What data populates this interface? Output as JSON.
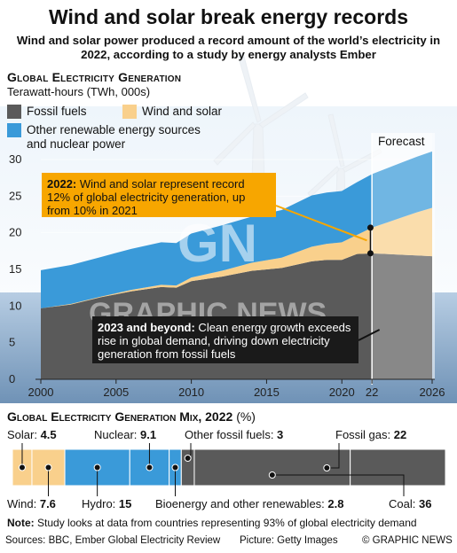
{
  "headline": "Wind and solar break energy records",
  "subhead": "Wind and solar power produced a record amount of the world’s electricity in 2022, according to a study by energy analysts Ember",
  "section_title": "Global Electricity Generation",
  "unit_label": "Terawatt-hours (TWh, 000s)",
  "legend": {
    "fossil": "Fossil fuels",
    "wind_solar": "Wind and solar",
    "other": "Other renewable energy sources and nuclear power"
  },
  "forecast_label": "Forecast",
  "callout_2022": {
    "lead": "2022:",
    "text": " Wind and solar represent record 12% of global electricity generation, up from 10% in 2021"
  },
  "callout_2023": {
    "lead": "2023 and beyond:",
    "text": " Clean energy growth exceeds rise in global demand, driving down electricity generation from fossil fuels"
  },
  "watermark": {
    "logo": "GN",
    "name": "GRAPHIC NEWS"
  },
  "colors": {
    "fossil": "#5a5a5a",
    "wind_solar": "#f9d08c",
    "other": "#3a9ad9",
    "callout": "#f7a600",
    "dark": "#1a1a1a"
  },
  "chart_data": {
    "type": "area",
    "title": "Global Electricity Generation",
    "ylabel": "Terawatt-hours (TWh, 000s)",
    "ylim": [
      0,
      30
    ],
    "yticks": [
      0,
      5,
      10,
      15,
      20,
      25,
      30
    ],
    "xticks": [
      "2000",
      "2005",
      "2010",
      "2015",
      "2020",
      "22",
      "2026"
    ],
    "xlim": [
      2000,
      2026
    ],
    "forecast_start": 2022,
    "x": [
      2000,
      2002,
      2004,
      2006,
      2008,
      2009,
      2010,
      2012,
      2014,
      2016,
      2018,
      2019,
      2020,
      2021,
      2022,
      2023,
      2024,
      2025,
      2026
    ],
    "series": [
      {
        "name": "Fossil fuels",
        "values": [
          9.7,
          10.2,
          11.2,
          12.0,
          12.6,
          12.5,
          13.4,
          14.0,
          14.8,
          15.2,
          16.1,
          16.3,
          16.3,
          17.1,
          17.2,
          17.1,
          17.0,
          16.9,
          16.8
        ]
      },
      {
        "name": "Wind and solar",
        "values": [
          0.0,
          0.1,
          0.1,
          0.2,
          0.3,
          0.3,
          0.5,
          0.8,
          1.1,
          1.4,
          2.0,
          2.2,
          2.4,
          2.6,
          3.5,
          4.3,
          5.1,
          5.9,
          6.6
        ]
      },
      {
        "name": "Other renewable energy sources and nuclear power",
        "values": [
          5.2,
          5.3,
          5.4,
          5.6,
          5.8,
          5.8,
          6.0,
          6.2,
          6.3,
          6.5,
          7.0,
          7.0,
          7.0,
          7.2,
          7.3,
          7.4,
          7.5,
          7.6,
          7.7
        ]
      }
    ],
    "annotations": [
      {
        "x": 2022,
        "text": "2022: Wind and solar represent record 12% of global electricity generation, up from 10% in 2021"
      },
      {
        "x": 2023,
        "text": "2023 and beyond: Clean energy growth exceeds rise in global demand, driving down electricity generation from fossil fuels"
      }
    ]
  },
  "mix": {
    "title": "Global Electricity Generation Mix, 2022",
    "unit": "(%)",
    "segments": [
      {
        "name": "Solar",
        "value": 4.5,
        "color": "#f9d08c"
      },
      {
        "name": "Wind",
        "value": 7.6,
        "color": "#f9d08c"
      },
      {
        "name": "Hydro",
        "value": 15,
        "color": "#3a9ad9"
      },
      {
        "name": "Nuclear",
        "value": 9.1,
        "color": "#3a9ad9"
      },
      {
        "name": "Bioenergy and other renewables",
        "value": 2.8,
        "color": "#3a9ad9"
      },
      {
        "name": "Other fossil fuels",
        "value": 3,
        "color": "#5a5a5a"
      },
      {
        "name": "Coal",
        "value": 36,
        "color": "#5a5a5a"
      },
      {
        "name": "Fossil gas",
        "value": 22,
        "color": "#5a5a5a"
      }
    ],
    "labels": {
      "solar": {
        "name": "Solar: ",
        "value": "4.5"
      },
      "nuclear": {
        "name": "Nuclear: ",
        "value": "9.1"
      },
      "other_fossil": {
        "name": "Other fossil fuels: ",
        "value": "3"
      },
      "fossil_gas": {
        "name": "Fossil gas: ",
        "value": "22"
      },
      "wind": {
        "name": "Wind: ",
        "value": "7.6"
      },
      "hydro": {
        "name": "Hydro: ",
        "value": "15"
      },
      "bio": {
        "name": "Bioenergy and other renewables: ",
        "value": "2.8"
      },
      "coal": {
        "name": "Coal: ",
        "value": "36"
      }
    }
  },
  "note": {
    "lead": "Note:",
    "text": " Study looks at data from countries representing 93% of global electricity demand"
  },
  "footer": {
    "sources": "Sources: BBC, Ember Global Electricity Review",
    "picture": "Picture: Getty Images",
    "credit": "© GRAPHIC NEWS"
  }
}
